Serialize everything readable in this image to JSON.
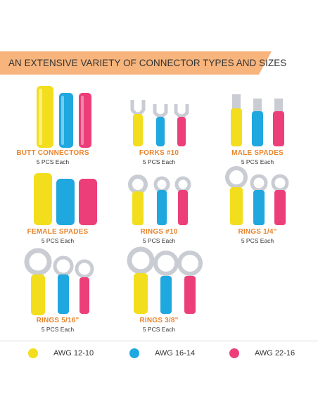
{
  "banner": {
    "title": "AN EXTENSIVE VARIETY OF CONNECTOR TYPES AND SIZES",
    "color": "#f7b47c"
  },
  "colors": {
    "yellow": "#f2de1d",
    "blue": "#1fa7e0",
    "pink": "#ec3f7a",
    "accent": "#e8842c",
    "metal": "#c9cdd3"
  },
  "items": [
    {
      "label": "BUTT CONNECTORS",
      "count": "5 PCS Each",
      "type": "butt"
    },
    {
      "label": "FORKS #10",
      "count": "5 PCS Each",
      "type": "fork"
    },
    {
      "label": "MALE SPADES",
      "count": "5 PCS Each",
      "type": "male"
    },
    {
      "label": "FEMALE SPADES",
      "count": "5 PCS Each",
      "type": "female"
    },
    {
      "label": "RINGS #10",
      "count": "5 PCS Each",
      "type": "ring-small"
    },
    {
      "label": "RINGS 1/4\"",
      "count": "5 PCS Each",
      "type": "ring-quarter"
    },
    {
      "label": "RINGS 5/16\"",
      "count": "5 PCS Each",
      "type": "ring-5-16"
    },
    {
      "label": "RINGS 3/8\"",
      "count": "5 PCS Each",
      "type": "ring-3-8"
    }
  ],
  "legend": [
    {
      "label": "AWG 12-10",
      "color": "#f2de1d"
    },
    {
      "label": "AWG 16-14",
      "color": "#1fa7e0"
    },
    {
      "label": "AWG 22-16",
      "color": "#ec3f7a"
    }
  ]
}
